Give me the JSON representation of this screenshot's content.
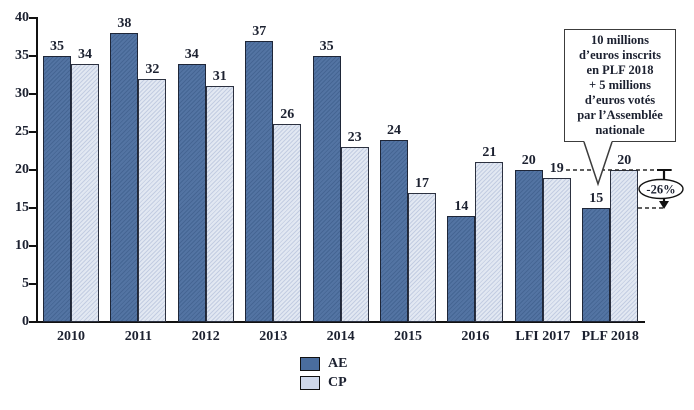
{
  "chart_data": {
    "type": "bar",
    "categories": [
      "2010",
      "2011",
      "2012",
      "2013",
      "2014",
      "2015",
      "2016",
      "LFI 2017",
      "PLF 2018"
    ],
    "series": [
      {
        "name": "AE",
        "values": [
          35,
          38,
          34,
          37,
          35,
          24,
          14,
          20,
          15
        ],
        "color": "#4a6d9e"
      },
      {
        "name": "CP",
        "values": [
          34,
          32,
          31,
          26,
          23,
          17,
          21,
          19,
          20
        ],
        "color": "#cfd8ea"
      }
    ],
    "title": "",
    "xlabel": "",
    "ylabel": "",
    "ylim": [
      0,
      40
    ],
    "yticks": [
      0,
      5,
      10,
      15,
      20,
      25,
      30,
      35,
      40
    ],
    "grid": false,
    "legend_position": "bottom-center",
    "bar_labels_shown": true
  },
  "legend": {
    "items": [
      {
        "label": "AE",
        "color": "#4a6d9e"
      },
      {
        "label": "CP",
        "color": "#cfd8ea"
      }
    ]
  },
  "annotation": {
    "callout_lines": [
      "10 millions",
      "d’euros inscrits",
      "en PLF 2018",
      "+ 5 millions",
      "d’euros votés",
      "par l’Assemblée",
      "nationale"
    ],
    "delta_label": "-26%",
    "from_value": 20,
    "to_value": 15
  },
  "colors": {
    "ae_bar": "#4a6d9e",
    "cp_bar": "#cfd8ea",
    "axis": "#111111",
    "text": "#1c2130",
    "callout_border": "#3c3c3c",
    "background": "#ffffff"
  }
}
